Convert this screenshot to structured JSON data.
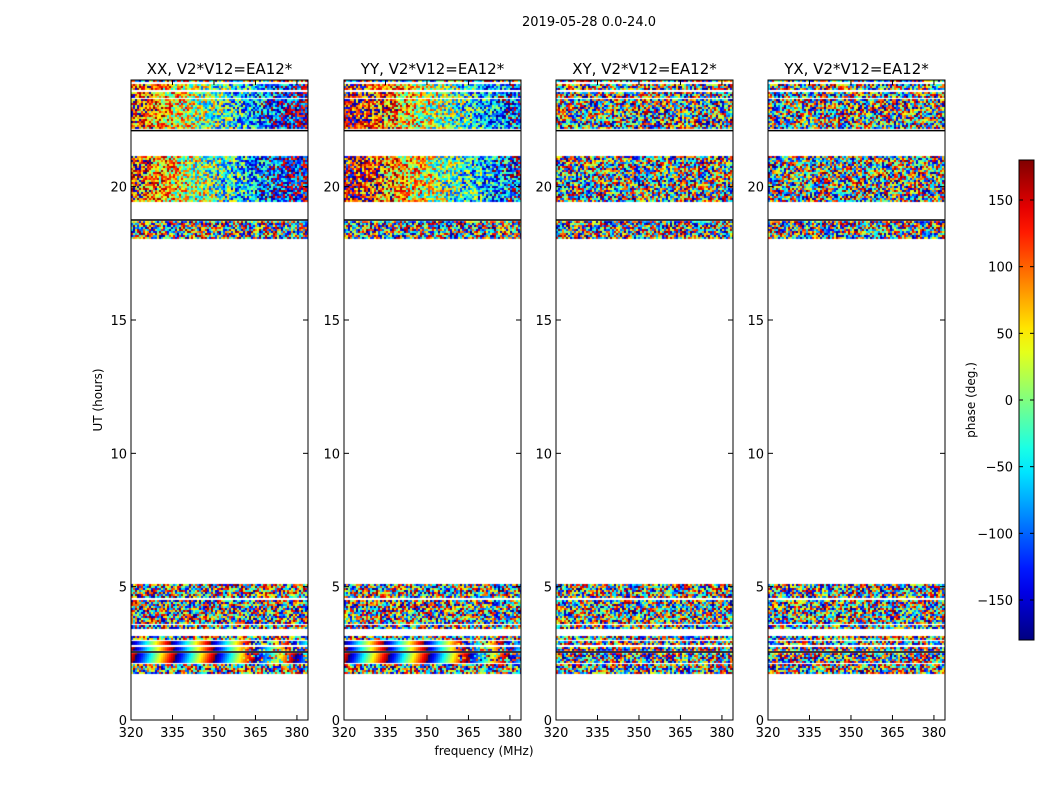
{
  "chart_data": {
    "type": "heatmap",
    "suptitle": "2019-05-28 0.0-24.0",
    "xlabel": "frequency (MHz)",
    "ylabel": "UT (hours)",
    "xlim": [
      320,
      384
    ],
    "ylim": [
      0,
      24
    ],
    "xticks": [
      320,
      335,
      350,
      365,
      380
    ],
    "yticks": [
      0,
      5,
      10,
      15,
      20
    ],
    "panels": [
      {
        "title": "XX, V2*V12=EA12*",
        "mode": "cal"
      },
      {
        "title": "YY, V2*V12=EA12*",
        "mode": "cal"
      },
      {
        "title": "XY, V2*V12=EA12*",
        "mode": "cross"
      },
      {
        "title": "YX, V2*V12=EA12*",
        "mode": "cross"
      }
    ],
    "data_bands_hours": [
      [
        1.75,
        2.1
      ],
      [
        2.15,
        2.5
      ],
      [
        2.6,
        2.75
      ],
      [
        2.85,
        2.95
      ],
      [
        3.05,
        3.15
      ],
      [
        3.4,
        3.55
      ],
      [
        3.6,
        4.5
      ],
      [
        4.6,
        5.1
      ],
      [
        18.05,
        18.7
      ],
      [
        19.45,
        21.15
      ],
      [
        22.15,
        23.3
      ],
      [
        23.35,
        23.55
      ],
      [
        23.65,
        23.85
      ],
      [
        23.95,
        24.0
      ]
    ],
    "colorbar": {
      "label": "phase (deg.)",
      "range": [
        -180,
        180
      ],
      "ticks": [
        -150,
        -100,
        -50,
        0,
        50,
        100,
        150
      ],
      "tick_labels": [
        "−150",
        "−100",
        "−50",
        "0",
        "50",
        "100",
        "150"
      ],
      "colormap": "jet"
    }
  }
}
